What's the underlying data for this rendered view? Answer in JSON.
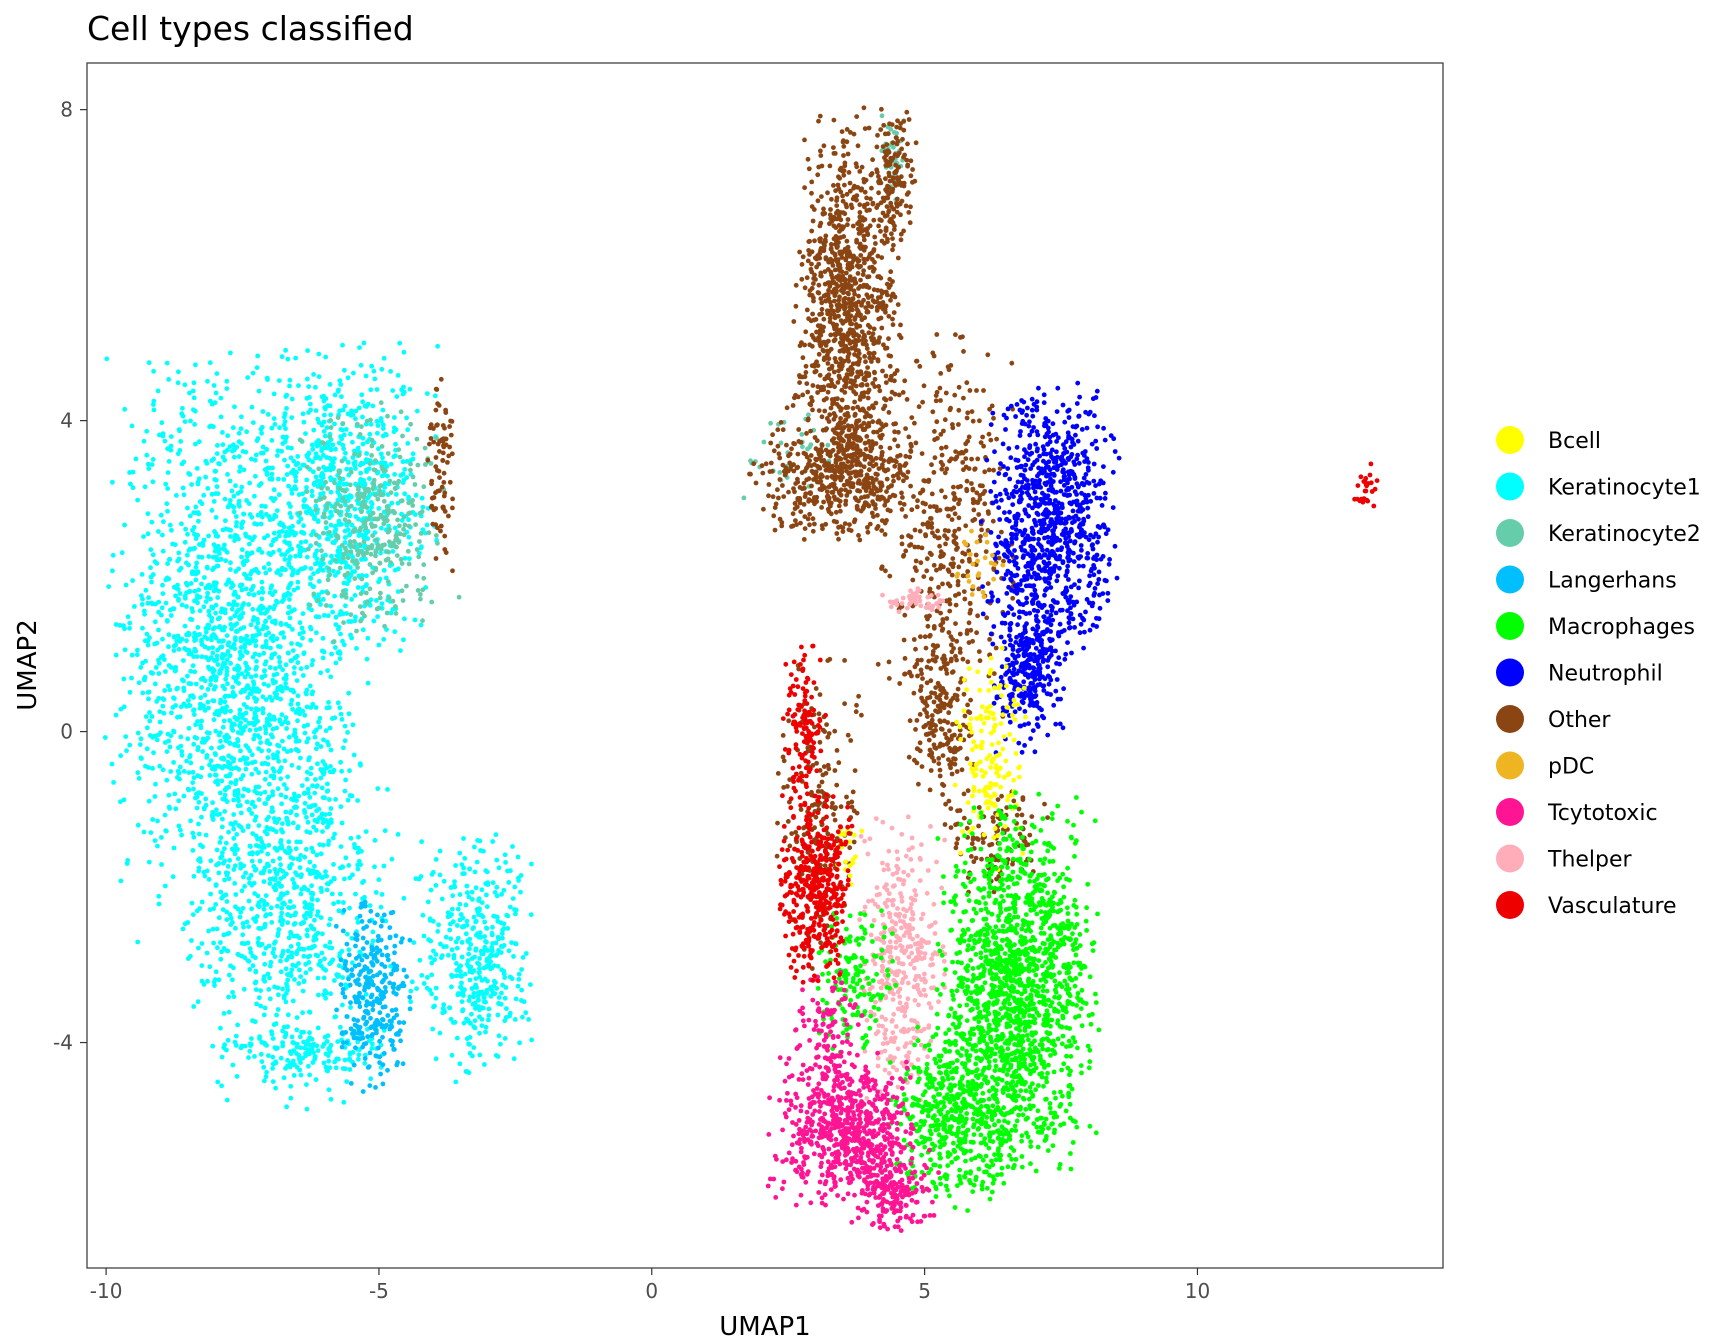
{
  "chart_data": {
    "type": "scatter",
    "title": "Cell types classified",
    "xlabel": "UMAP1",
    "ylabel": "UMAP2",
    "xlim": [
      -10.35,
      14.5
    ],
    "ylim": [
      -6.9,
      8.6
    ],
    "x_ticks": [
      -10,
      -5,
      0,
      5,
      10
    ],
    "y_ticks": [
      -4,
      0,
      4,
      8
    ],
    "x_tick_labels": [
      "-10",
      "-5",
      "0",
      "5",
      "10"
    ],
    "y_tick_labels": [
      "-4",
      "0",
      "4",
      "8"
    ],
    "grid": false,
    "legend_position": "right",
    "legend": [
      {
        "name": "Bcell",
        "color": "#FFFF00"
      },
      {
        "name": "Keratinocyte1",
        "color": "#00FFFF"
      },
      {
        "name": "Keratinocyte2",
        "color": "#66CDAA"
      },
      {
        "name": "Langerhans",
        "color": "#00BFFF"
      },
      {
        "name": "Macrophages",
        "color": "#00FF00"
      },
      {
        "name": "Neutrophil",
        "color": "#0000FF"
      },
      {
        "name": "Other",
        "color": "#8B4513"
      },
      {
        "name": "pDC",
        "color": "#EEB422"
      },
      {
        "name": "Tcytotoxic",
        "color": "#FF1493"
      },
      {
        "name": "Thelper",
        "color": "#FFAEB9"
      },
      {
        "name": "Vasculature",
        "color": "#EE0000"
      }
    ],
    "clusters": [
      {
        "series": "Keratinocyte1",
        "cx": -7.6,
        "cy": 1.0,
        "sx": 1.05,
        "sy": 1.7,
        "n": 1800
      },
      {
        "series": "Keratinocyte1",
        "cx": -5.6,
        "cy": 3.0,
        "sx": 0.75,
        "sy": 0.9,
        "n": 700
      },
      {
        "series": "Keratinocyte1",
        "cx": -6.6,
        "cy": -2.4,
        "sx": 0.85,
        "sy": 1.1,
        "n": 700
      },
      {
        "series": "Keratinocyte1",
        "cx": -3.3,
        "cy": -2.9,
        "sx": 0.5,
        "sy": 0.7,
        "n": 420
      },
      {
        "series": "Keratinocyte1",
        "cx": -6.3,
        "cy": -4.1,
        "sx": 0.7,
        "sy": 0.15,
        "n": 120
      },
      {
        "series": "Keratinocyte2",
        "cx": -5.1,
        "cy": 2.7,
        "sx": 0.6,
        "sy": 0.7,
        "n": 320
      },
      {
        "series": "Keratinocyte2",
        "cx": 4.4,
        "cy": 7.4,
        "sx": 0.1,
        "sy": 0.3,
        "n": 35
      },
      {
        "series": "Keratinocyte2",
        "cx": 2.5,
        "cy": 3.6,
        "sx": 0.5,
        "sy": 0.3,
        "n": 30
      },
      {
        "series": "Langerhans",
        "cx": -5.1,
        "cy": -3.4,
        "sx": 0.3,
        "sy": 0.55,
        "n": 280
      },
      {
        "series": "Other",
        "cx": 3.6,
        "cy": 5.3,
        "sx": 0.45,
        "sy": 1.2,
        "n": 1100
      },
      {
        "series": "Other",
        "cx": 3.4,
        "cy": 3.3,
        "sx": 0.7,
        "sy": 0.4,
        "n": 450
      },
      {
        "series": "Other",
        "cx": 4.4,
        "cy": 7.2,
        "sx": 0.2,
        "sy": 0.4,
        "n": 120
      },
      {
        "series": "Other",
        "cx": 5.4,
        "cy": 2.7,
        "sx": 0.55,
        "sy": 1.1,
        "n": 420
      },
      {
        "series": "Other",
        "cx": 5.3,
        "cy": 0.2,
        "sx": 0.3,
        "sy": 0.6,
        "n": 200
      },
      {
        "series": "Other",
        "cx": -3.9,
        "cy": 3.3,
        "sx": 0.15,
        "sy": 0.55,
        "n": 80
      },
      {
        "series": "Other",
        "cx": 3.1,
        "cy": -1.1,
        "sx": 0.35,
        "sy": 0.9,
        "n": 190
      },
      {
        "series": "Other",
        "cx": 6.3,
        "cy": -1.4,
        "sx": 0.45,
        "sy": 0.3,
        "n": 110
      },
      {
        "series": "Neutrophil",
        "cx": 7.3,
        "cy": 2.7,
        "sx": 0.55,
        "sy": 0.8,
        "n": 900
      },
      {
        "series": "Neutrophil",
        "cx": 6.9,
        "cy": 0.8,
        "sx": 0.3,
        "sy": 0.5,
        "n": 300
      },
      {
        "series": "Bcell",
        "cx": 6.2,
        "cy": -0.3,
        "sx": 0.3,
        "sy": 0.6,
        "n": 160
      },
      {
        "series": "Bcell",
        "cx": 3.6,
        "cy": -1.6,
        "sx": 0.12,
        "sy": 0.2,
        "n": 20
      },
      {
        "series": "pDC",
        "cx": 6.0,
        "cy": 2.1,
        "sx": 0.2,
        "sy": 0.25,
        "n": 25
      },
      {
        "series": "Thelper",
        "cx": 4.8,
        "cy": 1.7,
        "sx": 0.3,
        "sy": 0.08,
        "n": 50
      },
      {
        "series": "Thelper",
        "cx": 4.6,
        "cy": -2.9,
        "sx": 0.35,
        "sy": 0.8,
        "n": 380
      },
      {
        "series": "Macrophages",
        "cx": 6.7,
        "cy": -3.3,
        "sx": 0.65,
        "sy": 1.1,
        "n": 1500
      },
      {
        "series": "Macrophages",
        "cx": 5.6,
        "cy": -4.9,
        "sx": 0.55,
        "sy": 0.55,
        "n": 500
      },
      {
        "series": "Macrophages",
        "cx": 3.7,
        "cy": -3.2,
        "sx": 0.35,
        "sy": 0.45,
        "n": 150
      },
      {
        "series": "Tcytotoxic",
        "cx": 3.5,
        "cy": -5.1,
        "sx": 0.6,
        "sy": 0.45,
        "n": 650
      },
      {
        "series": "Tcytotoxic",
        "cx": 4.4,
        "cy": -5.9,
        "sx": 0.4,
        "sy": 0.25,
        "n": 200
      },
      {
        "series": "Tcytotoxic",
        "cx": 3.2,
        "cy": -3.9,
        "sx": 0.3,
        "sy": 0.4,
        "n": 110
      },
      {
        "series": "Vasculature",
        "cx": 3.0,
        "cy": -2.0,
        "sx": 0.3,
        "sy": 0.55,
        "n": 450
      },
      {
        "series": "Vasculature",
        "cx": 2.8,
        "cy": 0.1,
        "sx": 0.18,
        "sy": 0.5,
        "n": 130
      },
      {
        "series": "Vasculature",
        "cx": 13.1,
        "cy": 3.1,
        "sx": 0.12,
        "sy": 0.15,
        "n": 25
      }
    ]
  }
}
